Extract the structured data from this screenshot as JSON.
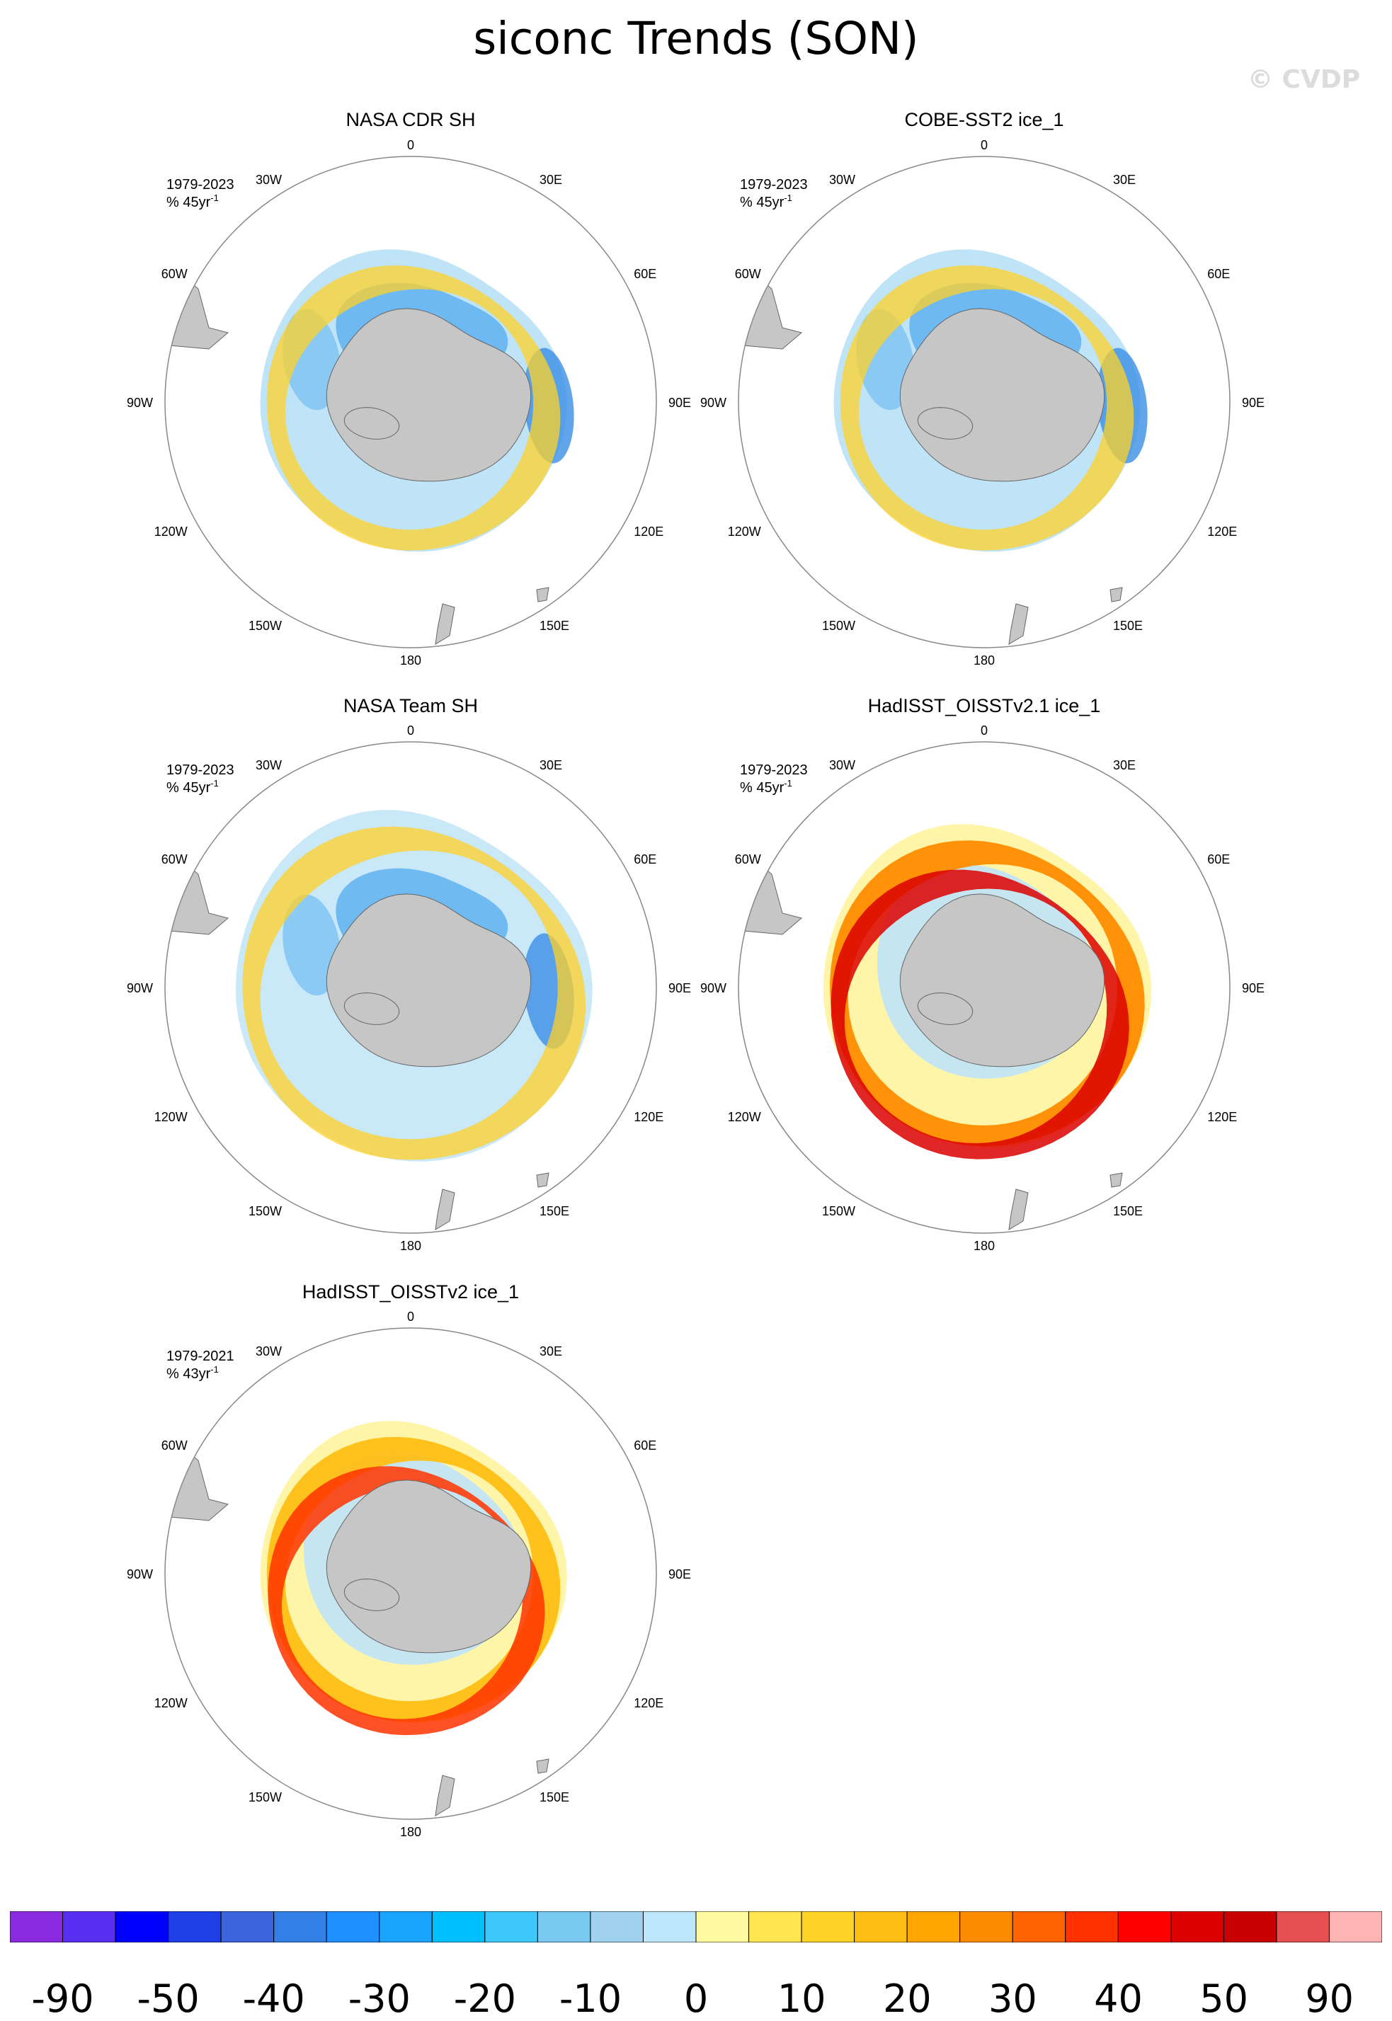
{
  "title": "siconc Trends (SON)",
  "watermark": "© CVDP",
  "panels": [
    {
      "name": "NASA CDR SH",
      "period": "1979-2023",
      "units": "% 45yr",
      "style": "cdr"
    },
    {
      "name": "COBE-SST2 ice_1",
      "period": "1979-2023",
      "units": "% 45yr",
      "style": "cobe"
    },
    {
      "name": "NASA Team SH",
      "period": "1979-2023",
      "units": "% 45yr",
      "style": "team"
    },
    {
      "name": "HadISST_OISSTv2.1 ice_1",
      "period": "1979-2023",
      "units": "% 45yr",
      "style": "had21"
    },
    {
      "name": "HadISST_OISSTv2 ice_1",
      "period": "1979-2021",
      "units": "% 43yr",
      "style": "had2"
    }
  ],
  "units_exponent": "-1",
  "longitude_labels": [
    "0",
    "30E",
    "60E",
    "90E",
    "120E",
    "150E",
    "180",
    "150W",
    "120W",
    "90W",
    "60W",
    "30W"
  ],
  "colorbar": {
    "colors": [
      "#8a2be2",
      "#5a2ef0",
      "#0000ff",
      "#1e3ee6",
      "#3c64dc",
      "#3280e6",
      "#1e90ff",
      "#19a5ff",
      "#00bfff",
      "#3cc8fa",
      "#78c8f0",
      "#a0d2f0",
      "#bee6fa",
      "#fffaa0",
      "#ffe650",
      "#ffd228",
      "#ffbe14",
      "#ffa500",
      "#ff8c00",
      "#ff6400",
      "#ff3200",
      "#ff0000",
      "#dc0000",
      "#c80000",
      "#e65050",
      "#ffb4b4"
    ],
    "labels": [
      "-90",
      "-50",
      "-40",
      "-30",
      "-20",
      "-10",
      "0",
      "10",
      "20",
      "30",
      "40",
      "50",
      "90"
    ]
  }
}
